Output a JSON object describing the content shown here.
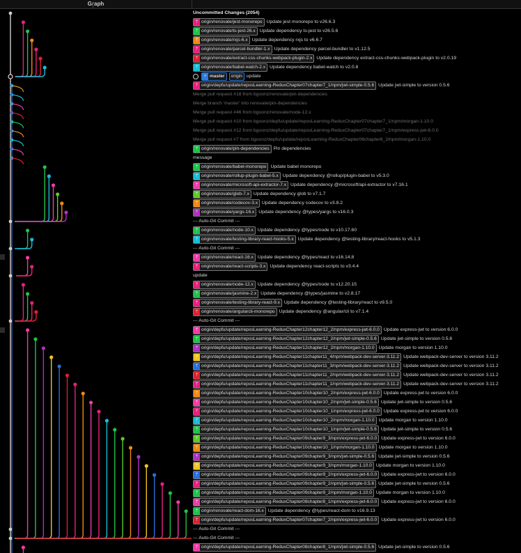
{
  "header": {
    "graph_label": "Graph"
  },
  "colors": {
    "pink": "#e8207c",
    "red": "#e02030",
    "orange": "#f28a14",
    "yellow": "#f2c422",
    "lime": "#5ccc28",
    "green": "#21c24a",
    "cyan": "#17bdd8",
    "blue": "#2a6fdb",
    "purple": "#b22ec4",
    "magenta": "#f23aa8"
  },
  "rows": [
    {
      "kind": "bold",
      "message": "Uncommitted Changes (2054)"
    },
    {
      "ref": "origin/renovate/jest-monorepo",
      "color": "pink",
      "message": "Update jest monorepo to v26.6.3"
    },
    {
      "ref": "origin/renovate/ts-jest-26.x",
      "color": "green",
      "message": "Update dependency ts-jest to v26.5.6"
    },
    {
      "ref": "origin/renovate/rxjs-6.x",
      "color": "orange",
      "message": "Update dependency rxjs to v6.6.7"
    },
    {
      "ref": "origin/renovate/parcel-bundler-1.x",
      "color": "pink",
      "message": "Update dependency parcel-bundler to v1.12.5"
    },
    {
      "ref": "origin/renovate/extract-css-chunks-webpack-plugin-2.x",
      "color": "red",
      "message": "Update dependency extract-css-chunks-webpack-plugin to v2.0.19"
    },
    {
      "ref": "origin/renovate/babel-watch-2.x",
      "color": "cyan",
      "message": "Update dependency babel-watch to v2.0.8"
    },
    {
      "kind": "master",
      "ref": "master",
      "ref2": "origin",
      "message": "update"
    },
    {
      "ref": "origin/depfu/update/reposLearning-ReduxChapter07chapter7_1/npm/jwt-simple-0.5.6",
      "color": "pink",
      "message": "Update jwt-simple to version 0.5.6"
    },
    {
      "kind": "dim",
      "message": "Merge pull request #18 from bgoonz/renovate/pin-dependencies"
    },
    {
      "kind": "dim",
      "message": "Merge branch 'master' into renovate/pin-dependencies"
    },
    {
      "kind": "dim",
      "message": "Merge pull request #46 from bgoonz/renovate/node-12.x"
    },
    {
      "kind": "dim",
      "message": "Merge pull request #10 from bgoonz/depfu/update/reposLearning-ReduxChapter07chapter7_1/npm/morgan-1.10.0"
    },
    {
      "kind": "dim",
      "message": "Merge pull request #12 from bgoonz/depfu/update/reposLearning-ReduxChapter07chapter7_1/npm/express-jwt-6.0.0"
    },
    {
      "kind": "dim",
      "message": "Merge pull request #7 from bgoonz/depfu/update/reposLearning-ReduxChapter06chapter6_2/npm/morgan-1.10.0"
    },
    {
      "ref": "origin/renovate/pin-dependencies",
      "color": "green",
      "message": "Pin dependencies"
    },
    {
      "kind": "plain",
      "message": "message"
    },
    {
      "ref": "origin/renovate/babel-monorepo",
      "color": "green",
      "message": "Update babel monorepo"
    },
    {
      "ref": "origin/renovate/rollup-plugin-babel-5.x",
      "color": "cyan",
      "message": "Update dependency @rollup/plugin-babel to v5.3.0"
    },
    {
      "ref": "origin/renovate/microsoft-api-extractor-7.x",
      "color": "magenta",
      "message": "Update dependency @microsoft/api-extractor to v7.16.1"
    },
    {
      "ref": "origin/renovate/glob-7.x",
      "color": "lime",
      "message": "Update dependency glob to v7.1.7"
    },
    {
      "ref": "origin/renovate/codecov-3.x",
      "color": "orange",
      "message": "Update dependency codecov to v3.8.2"
    },
    {
      "ref": "origin/renovate/yargs-16.x",
      "color": "purple",
      "message": "Update dependency @types/yargs to v16.0.3"
    },
    {
      "kind": "plain",
      "message": "--- Auto-Git Commit ---"
    },
    {
      "ref": "origin/renovate/node-10.x",
      "color": "green",
      "message": "Update dependency @types/node to v10.17.60"
    },
    {
      "ref": "origin/renovate/testing-library-react-hooks-5.x",
      "color": "cyan",
      "message": "Update dependency @testing-library/react-hooks to v5.1.3"
    },
    {
      "kind": "plain",
      "message": "--- Auto-Git Commit ---"
    },
    {
      "ref": "origin/renovate/react-16.x",
      "color": "magenta",
      "message": "Update dependency @types/react to v16.14.8"
    },
    {
      "ref": "origin/renovate/react-scripts-3.x",
      "color": "pink",
      "message": "Update dependency react-scripts to v3.4.4"
    },
    {
      "kind": "plain",
      "message": "update"
    },
    {
      "ref": "origin/renovate/node-12.x",
      "color": "pink",
      "message": "Update dependency @types/node to v12.20.15"
    },
    {
      "ref": "origin/renovate/jasmine-2.x",
      "color": "green",
      "message": "Update dependency @types/jasmine to v2.8.17"
    },
    {
      "ref": "origin/renovate/testing-library-react-9.x",
      "color": "pink",
      "message": "Update dependency @testing-library/react to v9.5.0"
    },
    {
      "ref": "origin/renovate/angularcli-monorepo",
      "color": "red",
      "message": "Update dependency @angular/cli to v7.1.4"
    },
    {
      "kind": "plain",
      "message": "--- Auto-Git Commit ---"
    },
    {
      "ref": "origin/depfu/update/reposLearning-ReduxChapter12chapter12_2/npm/express-jwt-6.0.0",
      "color": "magenta",
      "message": "Update express-jwt to version 6.0.0"
    },
    {
      "ref": "origin/depfu/update/reposLearning-ReduxChapter12chapter12_2/npm/jwt-simple-0.5.6",
      "color": "green",
      "message": "Update jwt-simple to version 0.5.6"
    },
    {
      "ref": "origin/depfu/update/reposLearning-ReduxChapter12chapter12_2/npm/morgan-1.10.0",
      "color": "purple",
      "message": "Update morgan to version 1.10.0"
    },
    {
      "ref": "origin/depfu/update/reposLearning-ReduxChapter11chapter11_4/npm/webpack-dev-server-3.11.2",
      "color": "yellow",
      "message": "Update webpack-dev-server to version 3.11.2"
    },
    {
      "ref": "origin/depfu/update/reposLearning-ReduxChapter11chapter11_3/npm/webpack-dev-server-3.11.2",
      "color": "blue",
      "message": "Update webpack-dev-server to version 3.11.2"
    },
    {
      "ref": "origin/depfu/update/reposLearning-ReduxChapter11chapter11_2/npm/webpack-dev-server-3.11.2",
      "color": "red",
      "message": "Update webpack-dev-server to version 3.11.2"
    },
    {
      "ref": "origin/depfu/update/reposLearning-ReduxChapter11chapter11_1/npm/webpack-dev-server-3.11.2",
      "color": "pink",
      "message": "Update webpack-dev-server to version 3.11.2"
    },
    {
      "ref": "origin/depfu/update/reposLearning-ReduxChapter10chapter10_2/npm/express-jwt-6.0.0",
      "color": "orange",
      "message": "Update express-jwt to version 6.0.0"
    },
    {
      "ref": "origin/depfu/update/reposLearning-ReduxChapter10chapter10_2/npm/jwt-simple-0.5.6",
      "color": "magenta",
      "message": "Update jwt-simple to version 0.5.6"
    },
    {
      "ref": "origin/depfu/update/reposLearning-ReduxChapter10chapter10_1/npm/express-jwt-6.0.0",
      "color": "pink",
      "message": "Update express-jwt to version 6.0.0"
    },
    {
      "ref": "origin/depfu/update/reposLearning-ReduxChapter10chapter10_2/npm/morgan-1.10.0",
      "color": "cyan",
      "message": "Update morgan to version 1.10.0"
    },
    {
      "ref": "origin/depfu/update/reposLearning-ReduxChapter10chapter10_1/npm/jwt-simple-0.5.6",
      "color": "green",
      "message": "Update jwt-simple to version 0.5.6"
    },
    {
      "ref": "origin/depfu/update/reposLearning-ReduxChapter09chapter9_3/npm/express-jwt-6.0.0",
      "color": "lime",
      "message": "Update express-jwt to version 6.0.0"
    },
    {
      "ref": "origin/depfu/update/reposLearning-ReduxChapter10chapter10_1/npm/morgan-1.10.0",
      "color": "orange",
      "message": "Update morgan to version 1.10.0"
    },
    {
      "ref": "origin/depfu/update/reposLearning-ReduxChapter09chapter9_3/npm/jwt-simple-0.5.6",
      "color": "purple",
      "message": "Update jwt-simple to version 0.5.6"
    },
    {
      "ref": "origin/depfu/update/reposLearning-ReduxChapter09chapter9_3/npm/morgan-1.10.0",
      "color": "yellow",
      "message": "Update morgan to version 1.10.0"
    },
    {
      "ref": "origin/depfu/update/reposLearning-ReduxChapter09chapter9_2/npm/express-jwt-6.0.0",
      "color": "blue",
      "message": "Update express-jwt to version 6.0.0"
    },
    {
      "ref": "origin/depfu/update/reposLearning-ReduxChapter09chapter9_2/npm/jwt-simple-0.5.6",
      "color": "pink",
      "message": "Update jwt-simple to version 0.5.6"
    },
    {
      "ref": "origin/depfu/update/reposLearning-ReduxChapter09chapter9_2/npm/morgan-1.10.0",
      "color": "green",
      "message": "Update morgan to version 1.10.0"
    },
    {
      "ref": "origin/depfu/update/reposLearning-ReduxChapter08chapter8_1/npm/express-jwt-6.0.0",
      "color": "magenta",
      "message": "Update express-jwt to version 6.0.0"
    },
    {
      "ref": "origin/renovate/react-dom-16.x",
      "color": "green",
      "message": "Update dependency @types/react-dom to v16.9.13"
    },
    {
      "ref": "origin/depfu/update/reposLearning-ReduxChapter07chapter7_2/npm/express-jwt-6.0.0",
      "color": "red",
      "message": "Update express-jwt to version 6.0.0"
    },
    {
      "kind": "plain",
      "message": "--- Auto-Git Commit ---"
    },
    {
      "kind": "plain",
      "message": "--- Auto-Git Commit ---"
    },
    {
      "ref": "origin/depfu/update/reposLearning-ReduxChapter08chapter8_1/npm/jwt-simple-0.5.6",
      "color": "magenta",
      "message": "Update jwt-simple to version 0.5.6"
    }
  ]
}
